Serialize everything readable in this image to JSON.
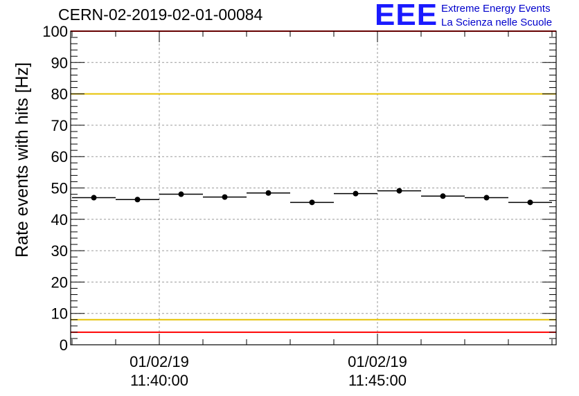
{
  "title": "CERN-02-2019-02-01-00084",
  "logo": {
    "mark": "EEE",
    "line1": "Extreme Energy Events",
    "line2": "La Scienza nelle Scuole"
  },
  "chart_data": {
    "type": "scatter",
    "title": "CERN-02-2019-02-01-00084",
    "ylabel": "Rate events with hits [Hz]",
    "xlabel": "",
    "ylim": [
      0,
      100
    ],
    "y_ticks": [
      "0",
      "10",
      "20",
      "30",
      "40",
      "50",
      "60",
      "70",
      "80",
      "90",
      "100"
    ],
    "x_ticks": [
      {
        "date": "01/02/19",
        "time": "11:40:00"
      },
      {
        "date": "01/02/19",
        "time": "11:45:00"
      }
    ],
    "grid": true,
    "x_bin_width_seconds": 60,
    "points": [
      {
        "time": "11:38:30",
        "value": 46.9
      },
      {
        "time": "11:39:30",
        "value": 46.3
      },
      {
        "time": "11:40:30",
        "value": 48.0
      },
      {
        "time": "11:41:30",
        "value": 47.1
      },
      {
        "time": "11:42:30",
        "value": 48.4
      },
      {
        "time": "11:43:30",
        "value": 45.4
      },
      {
        "time": "11:44:30",
        "value": 48.2
      },
      {
        "time": "11:45:30",
        "value": 49.1
      },
      {
        "time": "11:46:30",
        "value": 47.4
      },
      {
        "time": "11:47:30",
        "value": 46.9
      },
      {
        "time": "11:48:30",
        "value": 45.4
      }
    ],
    "reference_lines": [
      {
        "value": 100,
        "color": "#ff0000"
      },
      {
        "value": 80,
        "color": "#e6c200"
      },
      {
        "value": 8,
        "color": "#e6c200"
      },
      {
        "value": 4,
        "color": "#ff0000"
      }
    ]
  }
}
